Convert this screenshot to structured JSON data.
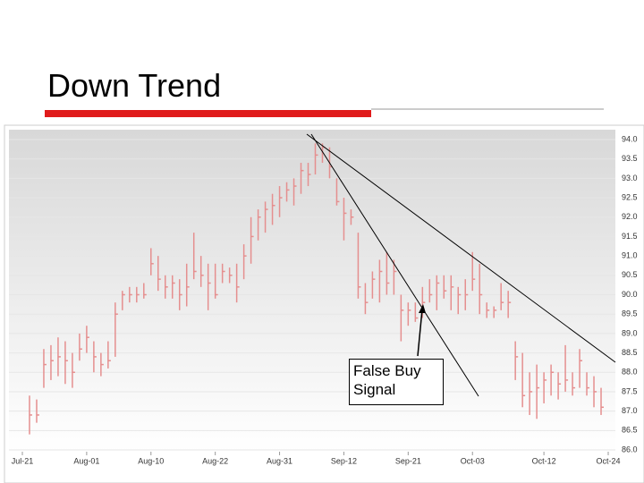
{
  "chart_data": {
    "type": "ohlc",
    "title": "Down Trend",
    "annotation": "False Buy Signal",
    "color": "#e58f8f",
    "grid": true,
    "x": [
      1,
      2,
      3,
      4,
      5,
      6,
      7,
      8,
      9,
      10,
      11,
      12,
      13,
      14,
      15,
      16,
      17,
      18,
      19,
      20,
      21,
      22,
      23,
      24,
      25,
      26,
      27,
      28,
      29,
      30,
      31,
      32,
      33,
      34,
      35,
      36,
      37,
      38,
      39,
      40,
      41,
      42,
      43,
      44,
      45,
      46,
      47,
      48,
      49,
      50,
      51,
      52,
      53,
      54,
      55,
      56,
      57,
      58,
      59,
      60,
      61,
      62,
      63,
      64,
      65,
      66,
      67,
      68,
      69,
      70,
      71,
      72,
      73,
      74,
      75,
      76,
      77,
      78,
      79,
      80,
      81
    ],
    "high": [
      87.4,
      87.3,
      88.6,
      88.7,
      88.9,
      88.8,
      88.5,
      89.0,
      89.2,
      88.8,
      88.5,
      88.8,
      89.8,
      90.1,
      90.2,
      90.2,
      90.3,
      91.2,
      91.0,
      90.5,
      90.5,
      90.4,
      90.8,
      91.6,
      91.0,
      90.8,
      90.8,
      90.8,
      90.7,
      90.8,
      91.3,
      92.0,
      92.2,
      92.4,
      92.6,
      92.8,
      92.9,
      93.0,
      93.4,
      93.4,
      93.9,
      93.9,
      93.8,
      93.0,
      92.5,
      92.2,
      91.6,
      90.3,
      90.6,
      90.9,
      91.1,
      90.9,
      90.0,
      89.8,
      89.8,
      90.2,
      90.4,
      90.5,
      90.5,
      90.5,
      90.2,
      90.4,
      91.1,
      90.8,
      89.8,
      89.7,
      90.3,
      90.1,
      88.8,
      88.5,
      88.0,
      88.2,
      88.0,
      88.2,
      88.0,
      88.7,
      88.0,
      88.6,
      88.0,
      87.9,
      87.6
    ],
    "low": [
      86.4,
      86.7,
      87.6,
      87.8,
      87.9,
      87.7,
      87.6,
      88.3,
      88.5,
      88.0,
      87.9,
      88.1,
      88.4,
      89.6,
      89.8,
      89.8,
      89.9,
      90.5,
      90.1,
      89.9,
      89.9,
      89.6,
      89.7,
      90.4,
      90.2,
      89.6,
      89.9,
      90.3,
      90.3,
      89.8,
      90.4,
      90.8,
      91.4,
      91.6,
      91.8,
      92.0,
      92.4,
      92.3,
      92.6,
      92.8,
      93.1,
      93.4,
      93.0,
      92.3,
      91.4,
      91.8,
      89.9,
      89.5,
      89.9,
      89.8,
      90.0,
      90.0,
      88.8,
      89.2,
      89.3,
      89.4,
      89.8,
      89.6,
      89.9,
      89.6,
      89.5,
      89.6,
      90.1,
      89.5,
      89.4,
      89.4,
      89.6,
      89.4,
      87.8,
      87.1,
      86.9,
      86.8,
      87.2,
      87.4,
      87.3,
      87.5,
      87.4,
      87.6,
      87.4,
      87.1,
      86.9
    ],
    "close": [
      86.9,
      86.9,
      88.2,
      88.3,
      88.4,
      88.3,
      88.0,
      88.6,
      88.9,
      88.4,
      88.2,
      88.3,
      89.5,
      90.0,
      90.0,
      90.0,
      90.0,
      90.8,
      90.4,
      90.2,
      90.3,
      90.0,
      90.2,
      90.6,
      90.5,
      90.3,
      90.0,
      90.6,
      90.5,
      90.2,
      91.0,
      91.5,
      92.0,
      92.2,
      92.3,
      92.5,
      92.7,
      92.8,
      93.2,
      93.1,
      93.6,
      93.8,
      93.3,
      92.4,
      92.1,
      92.0,
      90.2,
      89.8,
      90.4,
      90.6,
      90.3,
      90.6,
      89.6,
      89.6,
      89.4,
      89.8,
      90.0,
      90.3,
      90.1,
      90.2,
      90.0,
      90.0,
      90.4,
      90.0,
      89.6,
      89.6,
      89.8,
      89.8,
      88.4,
      87.4,
      87.5,
      87.6,
      87.8,
      88.0,
      87.7,
      87.8,
      87.6,
      88.3,
      87.6,
      87.5,
      87.1
    ],
    "xlim": [
      0,
      82
    ],
    "xticks": [
      {
        "value": 0,
        "label": "Jul-21"
      },
      {
        "value": 9,
        "label": "Aug-01"
      },
      {
        "value": 18,
        "label": "Aug-10"
      },
      {
        "value": 27,
        "label": "Aug-22"
      },
      {
        "value": 36,
        "label": "Aug-31"
      },
      {
        "value": 45,
        "label": "Sep-12"
      },
      {
        "value": 54,
        "label": "Sep-21"
      },
      {
        "value": 63,
        "label": "Oct-03"
      },
      {
        "value": 73,
        "label": "Oct-12"
      },
      {
        "value": 82,
        "label": "Oct-24"
      }
    ],
    "ylim": [
      86,
      94
    ],
    "yticks": [
      {
        "value": 86,
        "label": "86.0"
      },
      {
        "value": 86.5,
        "label": "86.5"
      },
      {
        "value": 87,
        "label": "87.0"
      },
      {
        "value": 87.5,
        "label": "87.5"
      },
      {
        "value": 88,
        "label": "88.0"
      },
      {
        "value": 88.5,
        "label": "88.5"
      },
      {
        "value": 89,
        "label": "89.0"
      },
      {
        "value": 89.5,
        "label": "89.5"
      },
      {
        "value": 90,
        "label": "90.0"
      },
      {
        "value": 90.5,
        "label": "90.5"
      },
      {
        "value": 91,
        "label": "91.0"
      },
      {
        "value": 91.5,
        "label": "91.5"
      },
      {
        "value": 92,
        "label": "92.0"
      },
      {
        "value": 92.5,
        "label": "92.5"
      },
      {
        "value": 93,
        "label": "93.0"
      },
      {
        "value": 93.5,
        "label": "93.5"
      },
      {
        "value": 94,
        "label": "94.0"
      }
    ]
  }
}
